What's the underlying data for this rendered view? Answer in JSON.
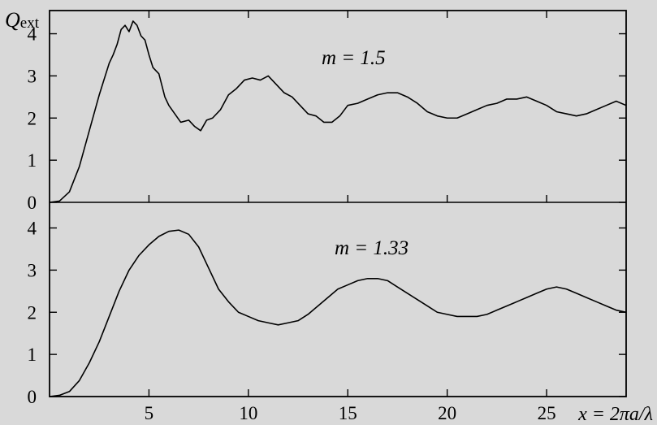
{
  "chart_data": {
    "type": "line",
    "ylabel": "Q",
    "ylabel_sub": "ext",
    "xlabel": "x = 2πa/λ",
    "xlim": [
      0,
      29
    ],
    "x_ticks": [
      5,
      10,
      15,
      20,
      25
    ],
    "y_ticks": [
      0,
      1,
      2,
      3,
      4
    ],
    "grid": false,
    "panels": [
      {
        "annotation": "m = 1.5",
        "ylim": [
          0,
          4.55
        ],
        "x": [
          0,
          0.5,
          1,
          1.5,
          2,
          2.5,
          3,
          3.2,
          3.4,
          3.6,
          3.8,
          4,
          4.2,
          4.4,
          4.6,
          4.8,
          5,
          5.2,
          5.5,
          5.8,
          6,
          6.3,
          6.6,
          7,
          7.3,
          7.6,
          7.9,
          8.2,
          8.6,
          9,
          9.4,
          9.8,
          10.2,
          10.6,
          11,
          11.4,
          11.8,
          12.2,
          12.6,
          13,
          13.4,
          13.8,
          14.2,
          14.6,
          15,
          15.5,
          16,
          16.5,
          17,
          17.5,
          18,
          18.5,
          19,
          19.5,
          20,
          20.5,
          21,
          21.5,
          22,
          22.5,
          23,
          23.5,
          24,
          24.5,
          25,
          25.5,
          26,
          26.5,
          27,
          27.5,
          28,
          28.5,
          29
        ],
        "y": [
          0,
          0.03,
          0.25,
          0.85,
          1.7,
          2.55,
          3.3,
          3.5,
          3.75,
          4.1,
          4.2,
          4.05,
          4.3,
          4.2,
          3.95,
          3.85,
          3.5,
          3.2,
          3.05,
          2.5,
          2.3,
          2.1,
          1.9,
          1.95,
          1.8,
          1.7,
          1.95,
          2.0,
          2.2,
          2.55,
          2.7,
          2.9,
          2.95,
          2.9,
          3.0,
          2.8,
          2.6,
          2.5,
          2.3,
          2.1,
          2.05,
          1.9,
          1.9,
          2.05,
          2.3,
          2.35,
          2.45,
          2.55,
          2.6,
          2.6,
          2.5,
          2.35,
          2.15,
          2.05,
          2.0,
          2.0,
          2.1,
          2.2,
          2.3,
          2.35,
          2.45,
          2.45,
          2.5,
          2.4,
          2.3,
          2.15,
          2.1,
          2.05,
          2.1,
          2.2,
          2.3,
          2.4,
          2.3
        ]
      },
      {
        "annotation": "m = 1.33",
        "ylim": [
          0,
          4.55
        ],
        "x": [
          0,
          0.5,
          1,
          1.5,
          2,
          2.5,
          3,
          3.5,
          4,
          4.5,
          5,
          5.5,
          6,
          6.5,
          7,
          7.5,
          8,
          8.5,
          9,
          9.5,
          10,
          10.5,
          11,
          11.5,
          12,
          12.5,
          13,
          13.5,
          14,
          14.5,
          15,
          15.5,
          16,
          16.5,
          17,
          17.5,
          18,
          18.5,
          19,
          19.5,
          20,
          20.5,
          21,
          21.5,
          22,
          22.5,
          23,
          23.5,
          24,
          24.5,
          25,
          25.5,
          26,
          26.5,
          27,
          27.5,
          28,
          28.5,
          29
        ],
        "y": [
          0,
          0.03,
          0.12,
          0.38,
          0.8,
          1.3,
          1.9,
          2.5,
          3.0,
          3.35,
          3.6,
          3.8,
          3.92,
          3.95,
          3.85,
          3.55,
          3.05,
          2.55,
          2.25,
          2.0,
          1.9,
          1.8,
          1.75,
          1.7,
          1.75,
          1.8,
          1.95,
          2.15,
          2.35,
          2.55,
          2.65,
          2.75,
          2.8,
          2.8,
          2.75,
          2.6,
          2.45,
          2.3,
          2.15,
          2.0,
          1.95,
          1.9,
          1.9,
          1.9,
          1.95,
          2.05,
          2.15,
          2.25,
          2.35,
          2.45,
          2.55,
          2.6,
          2.55,
          2.45,
          2.35,
          2.25,
          2.15,
          2.05,
          2.0
        ]
      }
    ]
  }
}
